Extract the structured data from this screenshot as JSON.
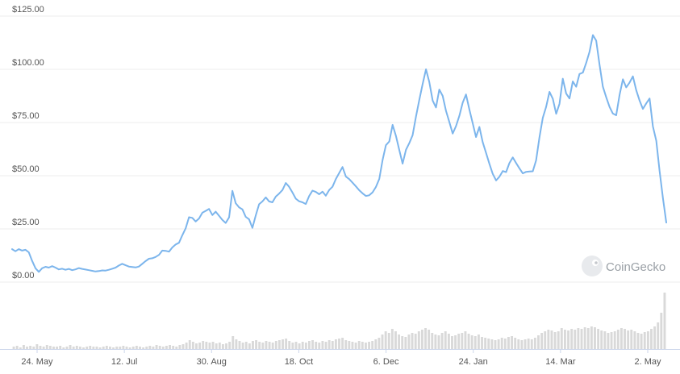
{
  "chart_data": {
    "type": "line",
    "title": "",
    "xlabel": "",
    "ylabel": "",
    "y_ticks": [
      "$125.00",
      "$100.00",
      "$75.00",
      "$50.00",
      "$25.00",
      "$0.00"
    ],
    "ylim": [
      0,
      125
    ],
    "x_ticks": [
      "24. May",
      "12. Jul",
      "30. Aug",
      "18. Oct",
      "6. Dec",
      "24. Jan",
      "14. Mar",
      "2. May"
    ],
    "grid": true,
    "colors": {
      "price_line": "#7cb5ec",
      "volume_bars": "#d9d9d9",
      "grid": "#eeeeee"
    },
    "series": [
      {
        "values": [
          15.5,
          14.5,
          15.5,
          14.8,
          15.2,
          14.0,
          10.0,
          6.5,
          4.8,
          6.5,
          7.2,
          6.8,
          7.5,
          6.8,
          6.0,
          6.3,
          5.8,
          6.2,
          5.6,
          6.0,
          6.6,
          6.2,
          5.9,
          5.6,
          5.3,
          5.0,
          5.2,
          5.5,
          5.4,
          5.8,
          6.3,
          6.8,
          7.8,
          8.6,
          7.9,
          7.3,
          7.1,
          6.9,
          7.3,
          8.6,
          9.9,
          11.0,
          11.2,
          11.8,
          12.8,
          14.8,
          14.7,
          14.3,
          16.3,
          17.7,
          18.5,
          22.0,
          25.3,
          30.5,
          30.2,
          28.5,
          29.9,
          32.6,
          33.5,
          34.4,
          31.5,
          33.1,
          31.2,
          29.2,
          27.8,
          30.4,
          42.9,
          37.1,
          35.1,
          34.2,
          30.7,
          29.5,
          25.5,
          31.4,
          36.6,
          37.9,
          39.8,
          37.9,
          37.5,
          40.2,
          41.6,
          43.3,
          46.6,
          44.8,
          42.1,
          39.2,
          38.0,
          37.5,
          36.7,
          40.5,
          43.0,
          42.4,
          41.3,
          42.5,
          40.6,
          43.3,
          44.8,
          48.5,
          51.3,
          54.1,
          49.6,
          48.4,
          46.7,
          45.0,
          43.2,
          41.7,
          40.5,
          40.8,
          42.2,
          44.7,
          48.5,
          57.4,
          64.3,
          66.1,
          73.9,
          68.8,
          62.1,
          55.7,
          62.2,
          65.3,
          69.0,
          77.8,
          85.6,
          93.0,
          100.0,
          94.0,
          85.3,
          82.1,
          90.5,
          87.5,
          80.5,
          75.3,
          69.8,
          73.3,
          78.2,
          84.3,
          88.2,
          81.1,
          74.7,
          68.2,
          72.9,
          65.8,
          60.7,
          55.6,
          50.9,
          47.8,
          49.5,
          52.2,
          51.7,
          55.9,
          58.6,
          56.0,
          53.5,
          51.1,
          51.8,
          52.0,
          52.1,
          57.2,
          68.1,
          77.2,
          82.3,
          89.4,
          86.2,
          79.1,
          83.8,
          95.6,
          88.6,
          86.3,
          94.3,
          91.8,
          97.8,
          98.5,
          103.0,
          108.2,
          116.1,
          113.5,
          102.3,
          91.8,
          86.9,
          82.3,
          79.2,
          78.4,
          88.0,
          95.3,
          91.5,
          93.8,
          96.7,
          90.1,
          85.3,
          81.4,
          84.0,
          86.3,
          73.2,
          66.4,
          52.2,
          39.3,
          28.0
        ]
      }
    ],
    "volume_values": [
      3,
      4,
      2,
      5,
      3,
      4,
      3,
      6,
      4,
      3,
      5,
      4,
      3,
      3,
      4,
      2,
      3,
      5,
      3,
      4,
      3,
      2,
      3,
      4,
      3,
      3,
      2,
      3,
      4,
      3,
      2,
      3,
      3,
      4,
      3,
      2,
      3,
      4,
      3,
      2,
      3,
      4,
      3,
      5,
      4,
      3,
      4,
      5,
      4,
      3,
      5,
      6,
      8,
      11,
      9,
      7,
      8,
      10,
      9,
      8,
      9,
      7,
      8,
      6,
      7,
      9,
      16,
      12,
      10,
      8,
      9,
      7,
      10,
      11,
      9,
      8,
      10,
      9,
      8,
      10,
      11,
      12,
      13,
      10,
      8,
      9,
      7,
      9,
      8,
      10,
      11,
      9,
      8,
      10,
      9,
      11,
      10,
      12,
      13,
      14,
      11,
      10,
      9,
      8,
      10,
      9,
      8,
      9,
      10,
      12,
      14,
      18,
      22,
      20,
      25,
      22,
      18,
      16,
      15,
      18,
      20,
      19,
      22,
      24,
      26,
      24,
      20,
      18,
      17,
      20,
      22,
      19,
      16,
      17,
      19,
      20,
      22,
      19,
      17,
      16,
      18,
      15,
      14,
      13,
      12,
      11,
      12,
      14,
      13,
      15,
      16,
      14,
      12,
      11,
      12,
      13,
      12,
      14,
      17,
      20,
      22,
      24,
      23,
      21,
      22,
      26,
      24,
      23,
      25,
      24,
      26,
      25,
      27,
      26,
      28,
      27,
      25,
      23,
      22,
      20,
      21,
      22,
      24,
      26,
      25,
      23,
      24,
      22,
      20,
      19,
      21,
      22,
      25,
      28,
      33,
      45,
      70
    ]
  }
}
